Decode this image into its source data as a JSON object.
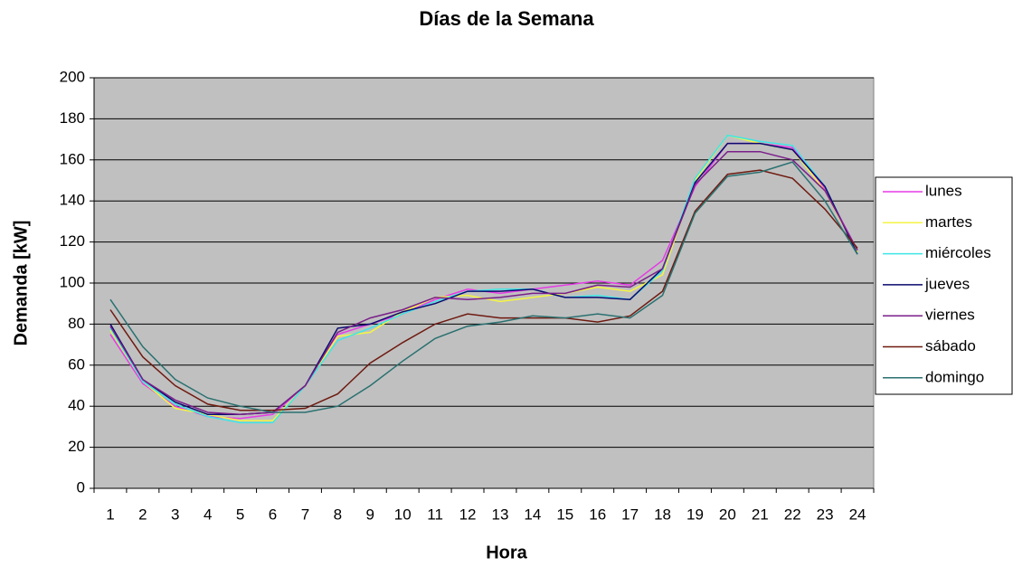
{
  "chart_data": {
    "type": "line",
    "title": "Días de la Semana",
    "x_label": "Hora",
    "y_label": "Demanda [kW]",
    "categories": [
      "1",
      "2",
      "3",
      "4",
      "5",
      "6",
      "7",
      "8",
      "9",
      "10",
      "11",
      "12",
      "13",
      "14",
      "15",
      "16",
      "17",
      "18",
      "19",
      "20",
      "21",
      "22",
      "23",
      "24"
    ],
    "ylim": [
      0,
      200
    ],
    "yticks": [
      0,
      20,
      40,
      60,
      80,
      100,
      120,
      140,
      160,
      180,
      200
    ],
    "grid": true,
    "legend": "right",
    "series": [
      {
        "name": "lunes",
        "color": "#e63ce6",
        "values": [
          75,
          51,
          40,
          35,
          34,
          36,
          50,
          75,
          80,
          85,
          92,
          97,
          95,
          97,
          99,
          101,
          99,
          111,
          147,
          168,
          168,
          166,
          146,
          116
        ]
      },
      {
        "name": "martes",
        "color": "#f5f542",
        "values": [
          77,
          52,
          39,
          36,
          33,
          33,
          50,
          74,
          76,
          86,
          93,
          94,
          91,
          93,
          95,
          98,
          96,
          104,
          150,
          172,
          168,
          165,
          145,
          115
        ]
      },
      {
        "name": "miércoles",
        "color": "#3ee6e6",
        "values": [
          78,
          52,
          41,
          35,
          32,
          32,
          50,
          72,
          78,
          85,
          91,
          96,
          97,
          97,
          93,
          94,
          92,
          106,
          151,
          172,
          169,
          167,
          147,
          114
        ]
      },
      {
        "name": "jueves",
        "color": "#0a0a6e",
        "values": [
          80,
          53,
          42,
          36,
          36,
          37,
          50,
          78,
          80,
          86,
          90,
          96,
          96,
          97,
          93,
          93,
          92,
          107,
          149,
          168,
          168,
          165,
          147,
          114
        ]
      },
      {
        "name": "viernes",
        "color": "#7a1f8a",
        "values": [
          79,
          53,
          43,
          37,
          36,
          37,
          50,
          76,
          83,
          87,
          93,
          92,
          93,
          95,
          95,
          99,
          98,
          107,
          148,
          164,
          164,
          160,
          145,
          116
        ]
      },
      {
        "name": "sábado",
        "color": "#6e1a10",
        "values": [
          87,
          64,
          50,
          41,
          38,
          38,
          39,
          46,
          61,
          71,
          80,
          85,
          83,
          83,
          83,
          81,
          84,
          96,
          135,
          153,
          155,
          151,
          136,
          117
        ]
      },
      {
        "name": "domingo",
        "color": "#2a7070",
        "values": [
          92,
          69,
          53,
          44,
          40,
          37,
          37,
          40,
          50,
          62,
          73,
          79,
          81,
          84,
          83,
          85,
          83,
          94,
          134,
          152,
          154,
          159,
          140,
          114
        ]
      }
    ]
  }
}
